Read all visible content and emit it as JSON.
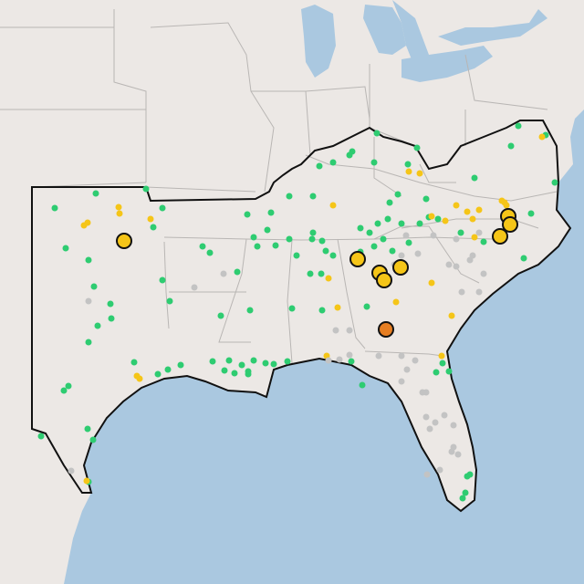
{
  "map": {
    "colors": {
      "water": "#aac8e0",
      "land": "#ece8e5",
      "state_border": "#b9b6b4",
      "region_outline": "#111111",
      "green": "#2ecc71",
      "yellow": "#f5c518",
      "gray": "#c3c3c3",
      "orange": "#e67e22"
    },
    "legend": {
      "visible": false
    },
    "labels": {
      "visible": false
    },
    "marker_sizes": [
      "small",
      "large"
    ],
    "marker_groups": [
      {
        "color": "green",
        "count": 120
      },
      {
        "color": "yellow",
        "count": 30
      },
      {
        "color": "gray",
        "count": 40
      },
      {
        "color": "large-yellow",
        "count": 10
      },
      {
        "color": "large-orange",
        "count": 1
      }
    ]
  }
}
